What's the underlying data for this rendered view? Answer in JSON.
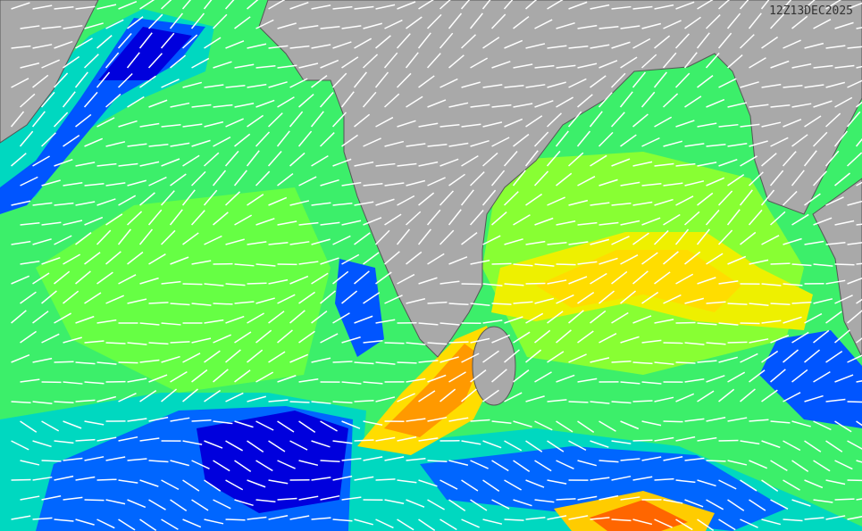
{
  "timestamp": "12Z13DEC2025"
}
